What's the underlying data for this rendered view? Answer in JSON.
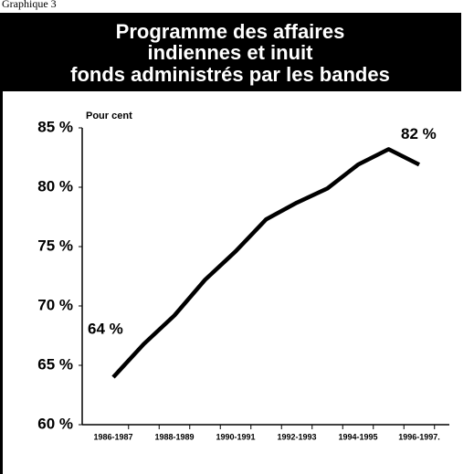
{
  "chart_data": {
    "type": "line",
    "label": "Graphique 3",
    "title": [
      "Programme des affaires",
      "indiennes et inuit",
      "fonds administrés par les bandes"
    ],
    "y_label": "Pour cent",
    "categories": [
      "1986-1987",
      null,
      "1988-1989",
      null,
      "1990-1991",
      null,
      "1992-1993",
      null,
      "1994-1995",
      null,
      "1996-1997."
    ],
    "series": [
      {
        "name": null,
        "color": "#000000",
        "values": [
          64,
          66.8,
          69.2,
          72.2,
          74.6,
          77.3,
          78.7,
          79.9,
          81.9,
          83.2,
          81.9
        ],
        "value_labels": [
          "64 %",
          null,
          null,
          null,
          null,
          null,
          null,
          null,
          null,
          null,
          "82 %"
        ]
      }
    ],
    "ylim": [
      60,
      85
    ],
    "yticks": [
      {
        "value": 60,
        "label": "60 %"
      },
      {
        "value": 65,
        "label": "65 %"
      },
      {
        "value": 70,
        "label": "70 %"
      },
      {
        "value": 75,
        "label": "75 %"
      },
      {
        "value": 80,
        "label": "80 %"
      },
      {
        "value": 85,
        "label": "85 %"
      }
    ]
  }
}
